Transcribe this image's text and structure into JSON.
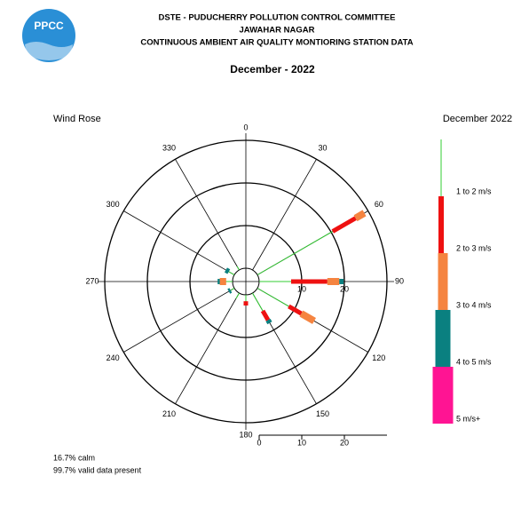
{
  "logo_text": "PPCC",
  "header": {
    "lines": [
      "DSTE - PUDUCHERRY POLLUTION CONTROL COMMITTEE",
      "JAWAHAR NAGAR",
      "CONTINUOUS AMBIENT AIR QUALITY MONTIORING STATION DATA"
    ],
    "period": "December - 2022"
  },
  "chart_data": {
    "type": "windrose",
    "title": "Wind Rose",
    "legend_title": "December 2022",
    "categories": [
      0,
      30,
      60,
      90,
      120,
      150,
      180,
      210,
      240,
      270,
      300,
      330
    ],
    "rlim": [
      0,
      30
    ],
    "rticks": [
      10,
      20
    ],
    "scale_ticks": [
      0,
      10,
      20
    ],
    "series": [
      {
        "name": "1 to 2 m/s",
        "color": "#33cc33",
        "values": [
          0,
          0,
          20.4,
          7.5,
          8.5,
          4.8,
          1.5,
          1.5,
          1,
          1.5,
          1.5,
          1
        ]
      },
      {
        "name": "2 to 3 m/s",
        "color": "#ee1111",
        "values": [
          0,
          0,
          6.2,
          8.5,
          3.4,
          2.5,
          1,
          0,
          0,
          0,
          0,
          0
        ]
      },
      {
        "name": "3 to 4 m/s",
        "color": "#f58440",
        "values": [
          0,
          0,
          2.4,
          2.8,
          3.5,
          0,
          0,
          0,
          0,
          1.5,
          0,
          0
        ]
      },
      {
        "name": "4 to 5 m/s",
        "color": "#0a8080",
        "values": [
          0,
          0,
          0,
          1,
          0,
          0.8,
          0,
          0,
          0.5,
          0.5,
          0.8,
          0
        ]
      },
      {
        "name": "5 m/s+",
        "color": "#ff1493",
        "values": [
          0,
          0,
          0,
          0,
          0,
          0,
          0,
          0,
          0,
          0,
          0,
          0
        ]
      }
    ],
    "notes": [
      "16.7% calm",
      "99.7% valid data present"
    ]
  }
}
